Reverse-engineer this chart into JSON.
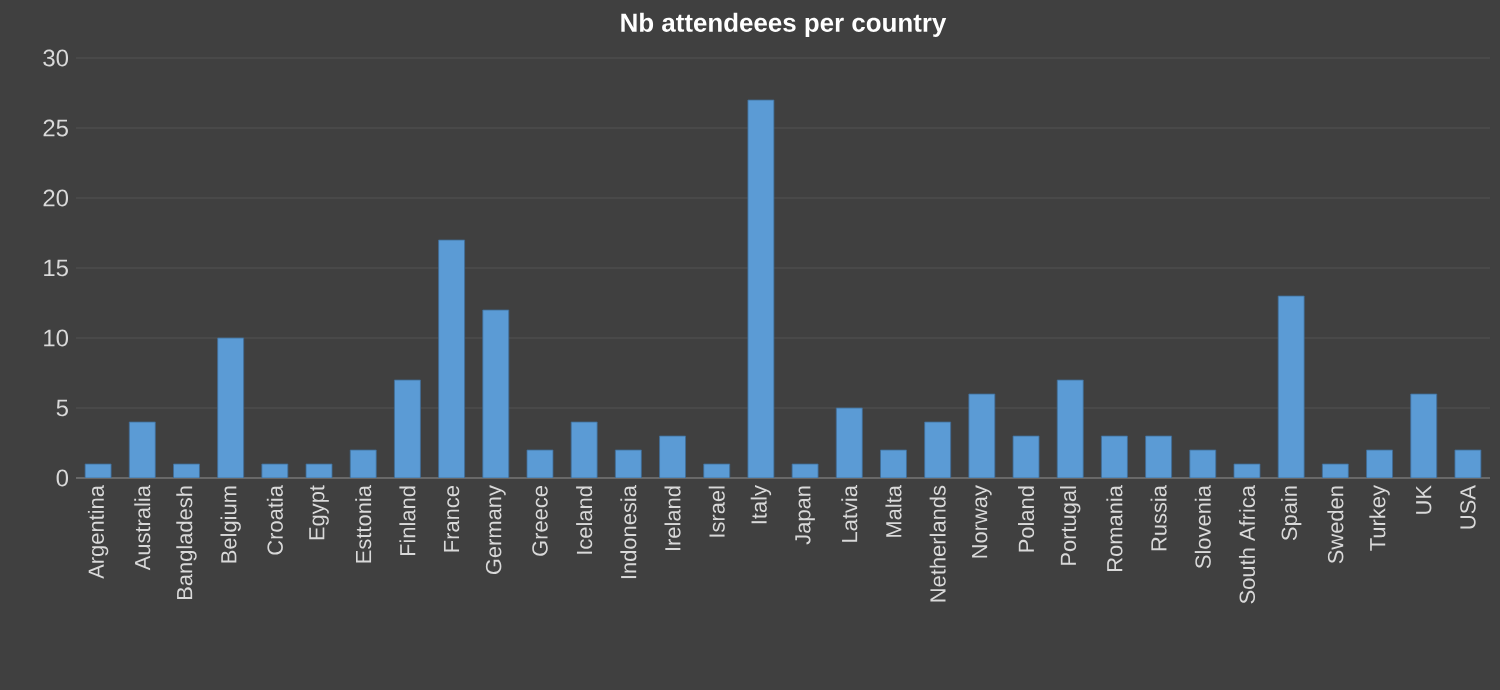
{
  "chart_data": {
    "type": "bar",
    "title": "Nb attendeees per country",
    "categories": [
      "Argentina",
      "Australia",
      "Bangladesh",
      "Belgium",
      "Croatia",
      "Egypt",
      "Esttonia",
      "Finland",
      "France",
      "Germany",
      "Greece",
      "Iceland",
      "Indonesia",
      "Ireland",
      "Israel",
      "Italy",
      "Japan",
      "Latvia",
      "Malta",
      "Netherlands",
      "Norway",
      "Poland",
      "Portugal",
      "Romania",
      "Russia",
      "Slovenia",
      "South Africa",
      "Spain",
      "Sweden",
      "Turkey",
      "UK",
      "USA"
    ],
    "values": [
      1,
      4,
      1,
      10,
      1,
      1,
      2,
      7,
      17,
      12,
      2,
      4,
      2,
      3,
      1,
      27,
      1,
      5,
      2,
      4,
      6,
      3,
      7,
      3,
      3,
      2,
      1,
      13,
      1,
      2,
      6,
      2
    ],
    "color": "#5b9bd5",
    "ylim": [
      0,
      30
    ],
    "yticks": [
      0,
      5,
      10,
      15,
      20,
      25,
      30
    ],
    "grid": "y"
  }
}
